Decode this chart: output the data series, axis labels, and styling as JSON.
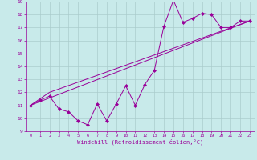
{
  "xlabel": "Windchill (Refroidissement éolien,°C)",
  "bg_color": "#c8eaea",
  "line_color": "#990099",
  "grid_color": "#aacccc",
  "xlim": [
    -0.5,
    23.5
  ],
  "ylim": [
    9,
    19
  ],
  "xticks": [
    0,
    1,
    2,
    3,
    4,
    5,
    6,
    7,
    8,
    9,
    10,
    11,
    12,
    13,
    14,
    15,
    16,
    17,
    18,
    19,
    20,
    21,
    22,
    23
  ],
  "yticks": [
    9,
    10,
    11,
    12,
    13,
    14,
    15,
    16,
    17,
    18,
    19
  ],
  "series1_x": [
    0,
    1,
    2,
    3,
    4,
    5,
    6,
    7,
    8,
    9,
    10,
    11,
    12,
    13,
    14,
    15,
    16,
    17,
    18,
    19,
    20,
    21,
    22,
    23
  ],
  "series1_y": [
    11.0,
    11.4,
    11.7,
    10.7,
    10.5,
    9.8,
    9.5,
    11.1,
    9.8,
    11.1,
    12.5,
    11.0,
    12.6,
    13.7,
    17.1,
    19.1,
    17.4,
    17.7,
    18.1,
    18.0,
    17.0,
    17.0,
    17.5,
    17.5
  ],
  "series2_x": [
    0,
    2,
    23
  ],
  "series2_y": [
    11.0,
    12.0,
    17.5
  ],
  "series3_x": [
    0,
    23
  ],
  "series3_y": [
    11.0,
    17.5
  ]
}
